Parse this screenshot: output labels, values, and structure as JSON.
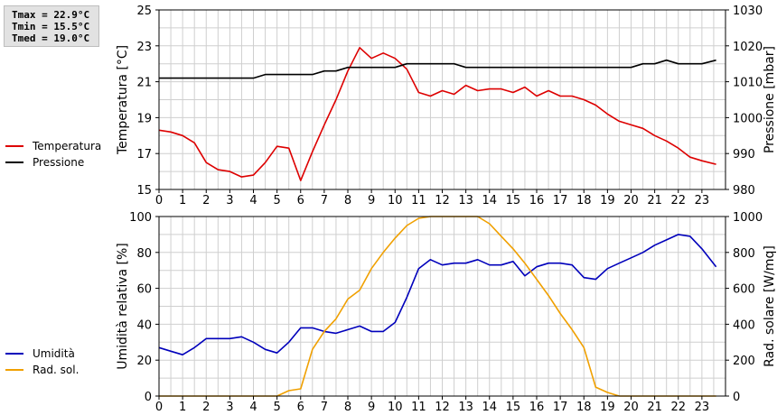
{
  "stats": {
    "tmax": "Tmax = 22.9°C",
    "tmin": "Tmin = 15.5°C",
    "tmed": "Tmed = 19.0°C"
  },
  "legend_top": [
    {
      "label": "Temperatura",
      "color": "#dd0000"
    },
    {
      "label": "Pressione",
      "color": "#000000"
    }
  ],
  "legend_bottom": [
    {
      "label": "Umidità",
      "color": "#0000bb"
    },
    {
      "label": "Rad. sol.",
      "color": "#f0a000"
    }
  ],
  "chart_data": [
    {
      "type": "line",
      "xlabel": "",
      "xlim": [
        0,
        24
      ],
      "xticks": [
        0,
        1,
        2,
        3,
        4,
        5,
        6,
        7,
        8,
        9,
        10,
        11,
        12,
        13,
        14,
        15,
        16,
        17,
        18,
        19,
        20,
        21,
        22,
        23
      ],
      "ylabel_left": "Temperatura [°C]",
      "ylim_left": [
        15,
        25
      ],
      "yticks_left": [
        15,
        17,
        19,
        21,
        23,
        25
      ],
      "ylabel_right": "Pressione [mbar]",
      "ylim_right": [
        980,
        1030
      ],
      "yticks_right": [
        980,
        990,
        1000,
        1010,
        1020,
        1030
      ],
      "grid": true,
      "series": [
        {
          "name": "Temperatura",
          "axis": "left",
          "color": "#dd0000",
          "x": [
            0,
            0.5,
            1,
            1.5,
            2,
            2.5,
            3,
            3.5,
            4,
            4.5,
            5,
            5.5,
            6,
            6.5,
            7,
            7.5,
            8,
            8.5,
            9,
            9.5,
            10,
            10.5,
            11,
            11.5,
            12,
            12.5,
            13,
            13.5,
            14,
            14.5,
            15,
            15.5,
            16,
            16.5,
            17,
            17.5,
            18,
            18.5,
            19,
            19.5,
            20,
            20.5,
            21,
            21.5,
            22,
            22.5,
            23,
            23.6
          ],
          "y": [
            18.3,
            18.2,
            18.0,
            17.6,
            16.5,
            16.1,
            16.0,
            15.7,
            15.8,
            16.5,
            17.4,
            17.3,
            15.5,
            17.1,
            18.6,
            20.0,
            21.6,
            22.9,
            22.3,
            22.6,
            22.3,
            21.7,
            20.4,
            20.2,
            20.5,
            20.3,
            20.8,
            20.5,
            20.6,
            20.6,
            20.4,
            20.7,
            20.2,
            20.5,
            20.2,
            20.2,
            20.0,
            19.7,
            19.2,
            18.8,
            18.6,
            18.4,
            18.0,
            17.7,
            17.3,
            16.8,
            16.6,
            16.4
          ]
        },
        {
          "name": "Pressione",
          "axis": "right",
          "color": "#000000",
          "x": [
            0,
            0.5,
            1,
            1.5,
            2,
            2.5,
            3,
            3.5,
            4,
            4.5,
            5,
            5.5,
            6,
            6.5,
            7,
            7.5,
            8,
            8.5,
            9,
            9.5,
            10,
            10.5,
            11,
            11.5,
            12,
            12.5,
            13,
            13.5,
            14,
            14.5,
            15,
            15.5,
            16,
            16.5,
            17,
            17.5,
            18,
            18.5,
            19,
            19.5,
            20,
            20.5,
            21,
            21.5,
            22,
            22.5,
            23,
            23.6
          ],
          "y": [
            1011,
            1011,
            1011,
            1011,
            1011,
            1011,
            1011,
            1011,
            1011,
            1012,
            1012,
            1012,
            1012,
            1012,
            1013,
            1013,
            1014,
            1014,
            1014,
            1014,
            1014,
            1015,
            1015,
            1015,
            1015,
            1015,
            1014,
            1014,
            1014,
            1014,
            1014,
            1014,
            1014,
            1014,
            1014,
            1014,
            1014,
            1014,
            1014,
            1014,
            1014,
            1015,
            1015,
            1016,
            1015,
            1015,
            1015,
            1016
          ]
        }
      ]
    },
    {
      "type": "line",
      "xlabel": "",
      "xlim": [
        0,
        24
      ],
      "xticks": [
        0,
        1,
        2,
        3,
        4,
        5,
        6,
        7,
        8,
        9,
        10,
        11,
        12,
        13,
        14,
        15,
        16,
        17,
        18,
        19,
        20,
        21,
        22,
        23
      ],
      "ylabel_left": "Umidità relativa [%]",
      "ylim_left": [
        0,
        100
      ],
      "yticks_left": [
        0,
        20,
        40,
        60,
        80,
        100
      ],
      "ylabel_right": "Rad. solare [W/mq]",
      "ylim_right": [
        0,
        1000
      ],
      "yticks_right": [
        0,
        200,
        400,
        600,
        800,
        1000
      ],
      "grid": true,
      "series": [
        {
          "name": "Umidità",
          "axis": "left",
          "color": "#0000bb",
          "x": [
            0,
            0.5,
            1,
            1.5,
            2,
            2.5,
            3,
            3.5,
            4,
            4.5,
            5,
            5.5,
            6,
            6.5,
            7,
            7.5,
            8,
            8.5,
            9,
            9.5,
            10,
            10.5,
            11,
            11.5,
            12,
            12.5,
            13,
            13.5,
            14,
            14.5,
            15,
            15.5,
            16,
            16.5,
            17,
            17.5,
            18,
            18.5,
            19,
            19.5,
            20,
            20.5,
            21,
            21.5,
            22,
            22.5,
            23,
            23.6
          ],
          "y": [
            27,
            25,
            23,
            27,
            32,
            32,
            32,
            33,
            30,
            26,
            24,
            30,
            38,
            38,
            36,
            35,
            37,
            39,
            36,
            36,
            41,
            55,
            71,
            76,
            73,
            74,
            74,
            76,
            73,
            73,
            75,
            67,
            72,
            74,
            74,
            73,
            66,
            65,
            71,
            74,
            77,
            80,
            84,
            87,
            90,
            89,
            82,
            72
          ]
        },
        {
          "name": "Rad. sol.",
          "axis": "right",
          "color": "#f0a000",
          "x": [
            0,
            0.5,
            1,
            1.5,
            2,
            2.5,
            3,
            3.5,
            4,
            4.5,
            5,
            5.5,
            6,
            6.5,
            7,
            7.5,
            8,
            8.5,
            9,
            9.5,
            10,
            10.5,
            11,
            11.5,
            12,
            12.5,
            13,
            13.5,
            14,
            14.5,
            15,
            15.5,
            16,
            16.5,
            17,
            17.5,
            18,
            18.5,
            19,
            19.5,
            20,
            20.5,
            21,
            21.5,
            22,
            22.5,
            23,
            23.6
          ],
          "y": [
            0,
            0,
            0,
            0,
            0,
            0,
            0,
            0,
            0,
            0,
            0,
            30,
            40,
            260,
            360,
            430,
            540,
            590,
            710,
            800,
            880,
            950,
            990,
            1000,
            1000,
            1000,
            1000,
            1000,
            960,
            890,
            820,
            740,
            650,
            560,
            460,
            370,
            270,
            50,
            20,
            0,
            0,
            0,
            0,
            0,
            0,
            0,
            0,
            0
          ]
        }
      ]
    }
  ]
}
